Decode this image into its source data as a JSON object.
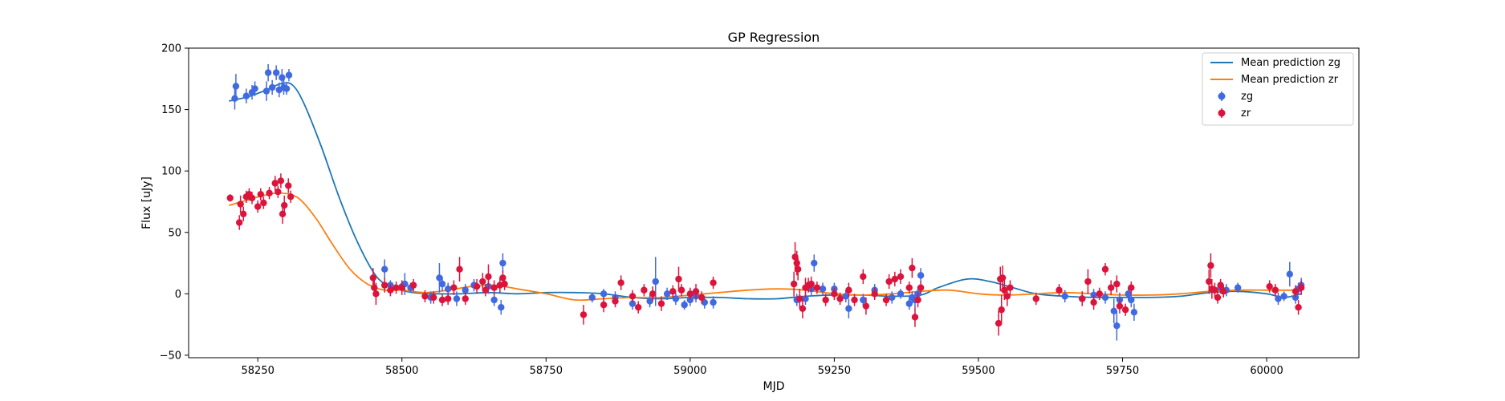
{
  "chart_data": {
    "type": "scatter",
    "title": "GP Regression",
    "xlabel": "MJD",
    "ylabel": "Flux [uJy]",
    "xlim": [
      58130,
      60160
    ],
    "ylim": [
      -52,
      200
    ],
    "xticks": [
      58250,
      58500,
      58750,
      59000,
      59250,
      59500,
      59750,
      60000
    ],
    "yticks": [
      -50,
      0,
      50,
      100,
      150,
      200
    ],
    "grid": false,
    "legend_position": "top-right",
    "legend": [
      "Mean prediction zg",
      "Mean prediction zr",
      "zg",
      "zr"
    ],
    "colors": {
      "zg_line": "#1f77b4",
      "zr_line": "#ff7f0e",
      "zg_points": "#4169e1",
      "zr_points": "#dc143c"
    },
    "lines": [
      {
        "name": "Mean prediction zg",
        "x": [
          58200,
          58230,
          58260,
          58290,
          58310,
          58330,
          58360,
          58390,
          58420,
          58450,
          58470,
          58490,
          58520,
          58560,
          58600,
          58650,
          58700,
          58750,
          58800,
          58850,
          58900,
          58950,
          59000,
          59050,
          59100,
          59150,
          59200,
          59250,
          59300,
          59350,
          59400,
          59430,
          59480,
          59520,
          59560,
          59600,
          59650,
          59700,
          59750,
          59800,
          59850,
          59900,
          59950,
          60000,
          60030,
          60060
        ],
        "y": [
          157,
          160,
          165,
          171,
          170,
          155,
          120,
          80,
          45,
          18,
          8,
          4,
          1,
          0,
          0,
          1,
          0,
          1,
          1,
          0,
          -3,
          -4,
          -3,
          -3,
          -4,
          -4,
          -2,
          -1,
          -1,
          -2,
          -1,
          5,
          12,
          10,
          5,
          0,
          -2,
          -3,
          -3,
          -3,
          -2,
          1,
          2,
          0,
          -3,
          0
        ]
      },
      {
        "name": "Mean prediction zr",
        "x": [
          58200,
          58230,
          58260,
          58290,
          58320,
          58350,
          58380,
          58410,
          58440,
          58470,
          58500,
          58540,
          58580,
          58620,
          58660,
          58700,
          58750,
          58800,
          58850,
          58900,
          58950,
          59000,
          59050,
          59100,
          59150,
          59200,
          59250,
          59300,
          59350,
          59400,
          59450,
          59500,
          59550,
          59600,
          59650,
          59700,
          59750,
          59800,
          59850,
          59900,
          59950,
          60000,
          60030,
          60060
        ],
        "y": [
          72,
          76,
          80,
          82,
          78,
          62,
          40,
          20,
          8,
          3,
          3,
          1,
          3,
          6,
          7,
          4,
          0,
          -5,
          -4,
          -3,
          -3,
          -1,
          1,
          3,
          4,
          3,
          0,
          -1,
          0,
          2,
          3,
          0,
          -1,
          0,
          1,
          0,
          -1,
          -1,
          0,
          2,
          3,
          3,
          3,
          3
        ]
      }
    ],
    "series": [
      {
        "name": "zg",
        "points": [
          [
            58210,
            159,
            9
          ],
          [
            58212,
            169,
            10
          ],
          [
            58230,
            161,
            6
          ],
          [
            58240,
            164,
            6
          ],
          [
            58245,
            167,
            6
          ],
          [
            58265,
            165,
            8
          ],
          [
            58268,
            180,
            7
          ],
          [
            58275,
            168,
            6
          ],
          [
            58282,
            180,
            6
          ],
          [
            58287,
            166,
            6
          ],
          [
            58292,
            176,
            7
          ],
          [
            58295,
            168,
            6
          ],
          [
            58300,
            167,
            5
          ],
          [
            58304,
            178,
            5
          ],
          [
            58470,
            20,
            8
          ],
          [
            58480,
            7,
            4
          ],
          [
            58500,
            6,
            5
          ],
          [
            58505,
            8,
            9
          ],
          [
            58515,
            5,
            4
          ],
          [
            58550,
            -3,
            5
          ],
          [
            58565,
            13,
            12
          ],
          [
            58570,
            8,
            6
          ],
          [
            58580,
            4,
            5
          ],
          [
            58595,
            -4,
            6
          ],
          [
            58610,
            3,
            5
          ],
          [
            58625,
            7,
            5
          ],
          [
            58650,
            6,
            6
          ],
          [
            58660,
            -5,
            5
          ],
          [
            58672,
            -11,
            6
          ],
          [
            58675,
            25,
            8
          ],
          [
            58830,
            -3,
            4
          ],
          [
            58850,
            0,
            4
          ],
          [
            58870,
            -3,
            5
          ],
          [
            58900,
            -8,
            5
          ],
          [
            58930,
            -6,
            5
          ],
          [
            58940,
            10,
            20
          ],
          [
            58960,
            0,
            5
          ],
          [
            58975,
            -4,
            5
          ],
          [
            58990,
            -9,
            4
          ],
          [
            59000,
            -5,
            5
          ],
          [
            59010,
            -2,
            5
          ],
          [
            59025,
            -7,
            5
          ],
          [
            59040,
            -7,
            5
          ],
          [
            59185,
            -5,
            5
          ],
          [
            59200,
            -4,
            5
          ],
          [
            59210,
            4,
            6
          ],
          [
            59215,
            25,
            7
          ],
          [
            59230,
            4,
            5
          ],
          [
            59250,
            4,
            5
          ],
          [
            59270,
            -2,
            5
          ],
          [
            59275,
            -12,
            8
          ],
          [
            59300,
            -5,
            5
          ],
          [
            59320,
            3,
            5
          ],
          [
            59350,
            -3,
            5
          ],
          [
            59365,
            0,
            4
          ],
          [
            59380,
            -8,
            5
          ],
          [
            59385,
            -3,
            5
          ],
          [
            59390,
            -5,
            6
          ],
          [
            59395,
            0,
            6
          ],
          [
            59400,
            15,
            6
          ],
          [
            59650,
            -2,
            5
          ],
          [
            59680,
            -4,
            6
          ],
          [
            59700,
            -1,
            5
          ],
          [
            59720,
            -3,
            5
          ],
          [
            59735,
            -14,
            10
          ],
          [
            59740,
            -26,
            12
          ],
          [
            59745,
            -5,
            6
          ],
          [
            59760,
            0,
            5
          ],
          [
            59765,
            -5,
            6
          ],
          [
            59770,
            -15,
            7
          ],
          [
            59920,
            5,
            5
          ],
          [
            59930,
            3,
            5
          ],
          [
            59950,
            5,
            4
          ],
          [
            60020,
            -4,
            5
          ],
          [
            60030,
            -2,
            4
          ],
          [
            60040,
            16,
            10
          ],
          [
            60050,
            -3,
            5
          ],
          [
            60055,
            4,
            5
          ],
          [
            60060,
            7,
            6
          ]
        ]
      },
      {
        "name": "zr",
        "points": [
          [
            58202,
            78,
            3
          ],
          [
            58218,
            58,
            6
          ],
          [
            58220,
            73,
            7
          ],
          [
            58225,
            65,
            6
          ],
          [
            58230,
            79,
            5
          ],
          [
            58235,
            81,
            5
          ],
          [
            58240,
            78,
            5
          ],
          [
            58250,
            71,
            5
          ],
          [
            58255,
            81,
            5
          ],
          [
            58260,
            74,
            5
          ],
          [
            58270,
            82,
            5
          ],
          [
            58280,
            90,
            6
          ],
          [
            58285,
            83,
            5
          ],
          [
            58290,
            92,
            6
          ],
          [
            58293,
            65,
            8
          ],
          [
            58296,
            72,
            8
          ],
          [
            58303,
            88,
            6
          ],
          [
            58307,
            79,
            5
          ],
          [
            58450,
            13,
            8
          ],
          [
            58452,
            5,
            6
          ],
          [
            58455,
            0,
            9
          ],
          [
            58470,
            7,
            6
          ],
          [
            58480,
            3,
            5
          ],
          [
            58490,
            5,
            5
          ],
          [
            58500,
            5,
            6
          ],
          [
            58520,
            7,
            5
          ],
          [
            58540,
            -2,
            5
          ],
          [
            58555,
            -3,
            5
          ],
          [
            58570,
            -5,
            5
          ],
          [
            58580,
            -4,
            5
          ],
          [
            58590,
            5,
            6
          ],
          [
            58600,
            20,
            10
          ],
          [
            58610,
            -4,
            5
          ],
          [
            58630,
            6,
            6
          ],
          [
            58640,
            10,
            7
          ],
          [
            58645,
            3,
            5
          ],
          [
            58650,
            14,
            10
          ],
          [
            58660,
            5,
            6
          ],
          [
            58670,
            7,
            6
          ],
          [
            58675,
            13,
            6
          ],
          [
            58678,
            8,
            5
          ],
          [
            58815,
            -17,
            8
          ],
          [
            58850,
            -9,
            6
          ],
          [
            58870,
            -6,
            5
          ],
          [
            58880,
            9,
            6
          ],
          [
            58900,
            -2,
            5
          ],
          [
            58910,
            -11,
            5
          ],
          [
            58920,
            3,
            5
          ],
          [
            58935,
            0,
            6
          ],
          [
            58950,
            -8,
            6
          ],
          [
            58970,
            2,
            5
          ],
          [
            58980,
            12,
            10
          ],
          [
            58985,
            3,
            5
          ],
          [
            59000,
            0,
            5
          ],
          [
            59010,
            2,
            6
          ],
          [
            59020,
            -3,
            5
          ],
          [
            59040,
            9,
            5
          ],
          [
            59180,
            8,
            10
          ],
          [
            59182,
            30,
            12
          ],
          [
            59185,
            25,
            10
          ],
          [
            59187,
            20,
            9
          ],
          [
            59190,
            -4,
            8
          ],
          [
            59195,
            -12,
            8
          ],
          [
            59200,
            5,
            8
          ],
          [
            59205,
            7,
            6
          ],
          [
            59210,
            8,
            6
          ],
          [
            59220,
            5,
            5
          ],
          [
            59235,
            -5,
            5
          ],
          [
            59250,
            0,
            5
          ],
          [
            59260,
            -4,
            5
          ],
          [
            59275,
            3,
            6
          ],
          [
            59285,
            -5,
            5
          ],
          [
            59300,
            14,
            6
          ],
          [
            59305,
            -10,
            7
          ],
          [
            59320,
            0,
            5
          ],
          [
            59340,
            -5,
            5
          ],
          [
            59345,
            10,
            6
          ],
          [
            59355,
            12,
            6
          ],
          [
            59365,
            14,
            6
          ],
          [
            59380,
            5,
            5
          ],
          [
            59385,
            21,
            8
          ],
          [
            59390,
            -19,
            8
          ],
          [
            59395,
            -5,
            6
          ],
          [
            59400,
            5,
            5
          ],
          [
            59535,
            -24,
            10
          ],
          [
            59538,
            12,
            10
          ],
          [
            59540,
            -13,
            12
          ],
          [
            59542,
            13,
            10
          ],
          [
            59545,
            3,
            8
          ],
          [
            59550,
            -2,
            8
          ],
          [
            59555,
            5,
            6
          ],
          [
            59600,
            -4,
            5
          ],
          [
            59640,
            3,
            5
          ],
          [
            59680,
            -4,
            6
          ],
          [
            59690,
            10,
            10
          ],
          [
            59700,
            -7,
            6
          ],
          [
            59710,
            0,
            5
          ],
          [
            59720,
            20,
            5
          ],
          [
            59730,
            5,
            6
          ],
          [
            59740,
            8,
            7
          ],
          [
            59745,
            -10,
            6
          ],
          [
            59755,
            -13,
            5
          ],
          [
            59765,
            5,
            5
          ],
          [
            59900,
            10,
            10
          ],
          [
            59903,
            23,
            10
          ],
          [
            59905,
            4,
            8
          ],
          [
            59910,
            3,
            6
          ],
          [
            59915,
            -3,
            5
          ],
          [
            59920,
            7,
            5
          ],
          [
            59925,
            2,
            5
          ],
          [
            60005,
            6,
            5
          ],
          [
            60015,
            3,
            5
          ],
          [
            60050,
            2,
            5
          ],
          [
            60055,
            -11,
            6
          ],
          [
            60060,
            5,
            6
          ]
        ]
      }
    ]
  }
}
